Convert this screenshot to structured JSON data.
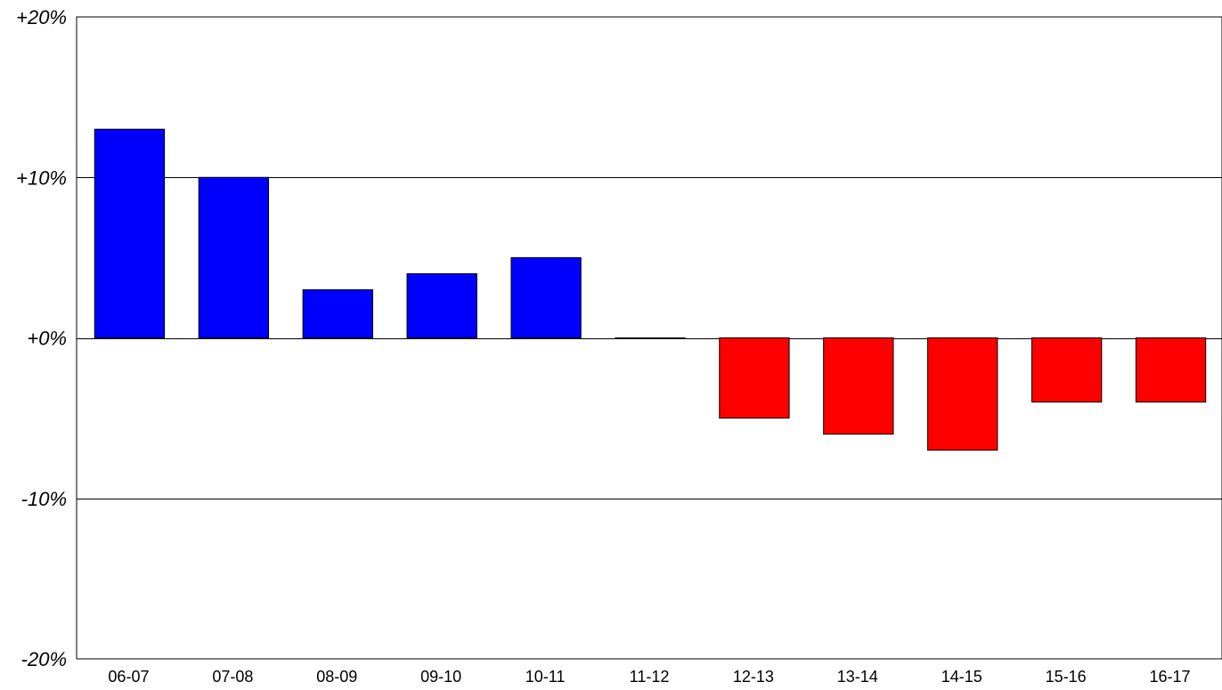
{
  "chart_data": {
    "type": "bar",
    "title": "",
    "xlabel": "",
    "ylabel": "",
    "categories": [
      "06-07",
      "07-08",
      "08-09",
      "09-10",
      "10-11",
      "11-12",
      "12-13",
      "13-14",
      "14-15",
      "15-16",
      "16-17"
    ],
    "values": [
      13,
      10,
      3,
      4,
      5,
      0,
      -5,
      -6,
      -7,
      -4,
      -4
    ],
    "ylim": [
      -20,
      20
    ],
    "yticks": [
      20,
      10,
      0,
      -10,
      -20
    ],
    "ytick_labels": [
      "+20%",
      "+10%",
      "+0%",
      "-10%",
      "-20%"
    ],
    "unit": "%",
    "grid": "horizontal",
    "legend": "none",
    "colors": {
      "positive": "#0000ff",
      "negative": "#ff0000",
      "border": "#000000",
      "background": "#ffffff"
    }
  }
}
